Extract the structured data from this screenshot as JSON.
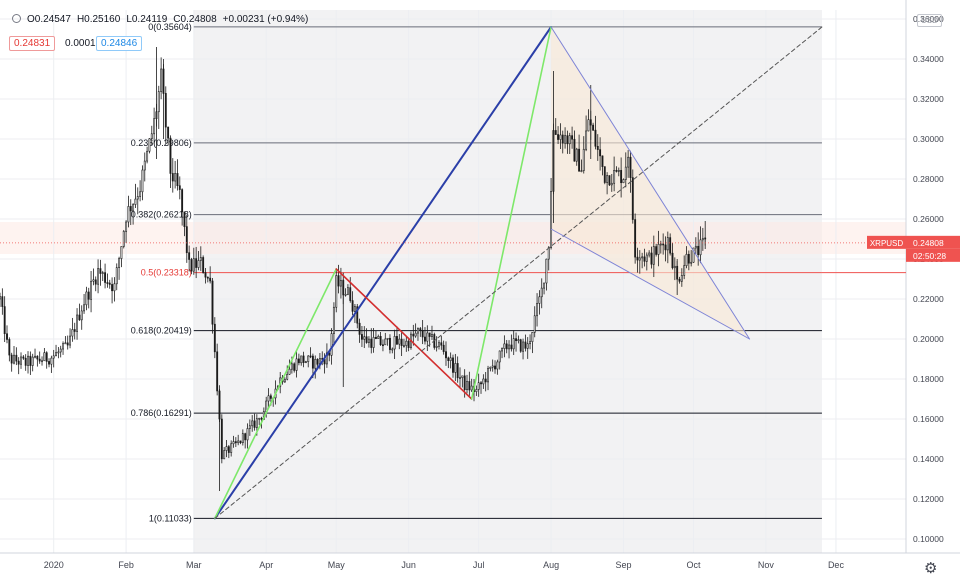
{
  "header": {
    "open": "O0.24547",
    "high": "H0.25160",
    "low": "L0.24119",
    "close": "C0.24808",
    "change": "+0.00231 (+0.94%)",
    "bid": "0.24831",
    "spread": "0.00015",
    "ask": "0.24846",
    "currency": "USD"
  },
  "chart_data": {
    "type": "candlestick",
    "symbol": "XRPUSD",
    "last_price": "0.24808",
    "countdown": "02:50:28",
    "ylim": [
      0.093,
      0.3645
    ],
    "x_range": [
      "2019-12-09",
      "2020-12-31"
    ],
    "y_ticks": [
      "0.10000",
      "0.12000",
      "0.14000",
      "0.16000",
      "0.18000",
      "0.20000",
      "0.22000",
      "0.24000",
      "0.26000",
      "0.28000",
      "0.30000",
      "0.32000",
      "0.34000",
      "0.36000"
    ],
    "x_ticks": [
      {
        "label": "2020",
        "date": "2020-01-01"
      },
      {
        "label": "Feb",
        "date": "2020-02-01"
      },
      {
        "label": "Mar",
        "date": "2020-03-01"
      },
      {
        "label": "Apr",
        "date": "2020-04-01"
      },
      {
        "label": "May",
        "date": "2020-05-01"
      },
      {
        "label": "Jun",
        "date": "2020-06-01"
      },
      {
        "label": "Jul",
        "date": "2020-07-01"
      },
      {
        "label": "Aug",
        "date": "2020-08-01"
      },
      {
        "label": "Sep",
        "date": "2020-09-01"
      },
      {
        "label": "Oct",
        "date": "2020-10-01"
      },
      {
        "label": "Nov",
        "date": "2020-11-01"
      },
      {
        "label": "Dec",
        "date": "2020-12-01"
      }
    ],
    "fib_levels": [
      {
        "label": "0(0.35604)",
        "price": 0.35604,
        "color": "#6a6d78"
      },
      {
        "label": "0.236(0.29806)",
        "price": 0.29806,
        "color": "#6a6d78"
      },
      {
        "label": "0.382(0.26218)",
        "price": 0.26218,
        "color": "#6a6d78"
      },
      {
        "label": "0.5(0.23318)",
        "price": 0.23318,
        "color": "#ef5350"
      },
      {
        "label": "0.618(0.20419)",
        "price": 0.20419,
        "color": "#131722"
      },
      {
        "label": "0.786(0.16291)",
        "price": 0.16291,
        "color": "#131722"
      },
      {
        "label": "1(0.11033)",
        "price": 0.11033,
        "color": "#131722"
      }
    ],
    "fib_start": "2020-03-01",
    "fib_end": "2020-11-25",
    "lines": [
      {
        "name": "blue-up",
        "color": "#2b3fa8",
        "width": 2,
        "points": [
          [
            "2020-03-10",
            0.1103
          ],
          [
            "2020-08-01",
            0.356
          ]
        ]
      },
      {
        "name": "green-1",
        "color": "#7ee86a",
        "width": 1.6,
        "points": [
          [
            "2020-03-10",
            0.1103
          ],
          [
            "2020-05-01",
            0.235
          ]
        ]
      },
      {
        "name": "red-1",
        "color": "#d32f2f",
        "width": 1.6,
        "points": [
          [
            "2020-05-01",
            0.235
          ],
          [
            "2020-06-28",
            0.17
          ]
        ]
      },
      {
        "name": "green-2",
        "color": "#7ee86a",
        "width": 1.6,
        "points": [
          [
            "2020-06-28",
            0.17
          ],
          [
            "2020-08-01",
            0.356
          ]
        ]
      },
      {
        "name": "dashed-trend",
        "color": "#555555",
        "width": 1,
        "dash": "4,3",
        "points": [
          [
            "2020-03-10",
            0.1103
          ],
          [
            "2020-11-25",
            0.356
          ]
        ]
      },
      {
        "name": "wedge-upper",
        "color": "#7e84d6",
        "width": 1,
        "points": [
          [
            "2020-08-01",
            0.356
          ],
          [
            "2020-10-25",
            0.2
          ]
        ]
      },
      {
        "name": "wedge-lower",
        "color": "#7e84d6",
        "width": 1,
        "points": [
          [
            "2020-08-01",
            0.255
          ],
          [
            "2020-10-25",
            0.2
          ]
        ]
      }
    ],
    "wedge_fill": [
      [
        "2020-08-01",
        0.356
      ],
      [
        "2020-10-25",
        0.2
      ],
      [
        "2020-08-01",
        0.255
      ]
    ],
    "control_points": [
      [
        "2019-12-09",
        0.22
      ],
      [
        "2019-12-13",
        0.19
      ],
      [
        "2019-12-20",
        0.188
      ],
      [
        "2019-12-31",
        0.191
      ],
      [
        "2020-01-07",
        0.196
      ],
      [
        "2020-01-13",
        0.216
      ],
      [
        "2020-01-20",
        0.234
      ],
      [
        "2020-01-27",
        0.226
      ],
      [
        "2020-02-01",
        0.262
      ],
      [
        "2020-02-07",
        0.276
      ],
      [
        "2020-02-13",
        0.308
      ],
      [
        "2020-02-16",
        0.33
      ],
      [
        "2020-02-20",
        0.284
      ],
      [
        "2020-02-24",
        0.272
      ],
      [
        "2020-02-28",
        0.236
      ],
      [
        "2020-03-04",
        0.238
      ],
      [
        "2020-03-08",
        0.228
      ],
      [
        "2020-03-13",
        0.142
      ],
      [
        "2020-03-20",
        0.148
      ],
      [
        "2020-03-30",
        0.162
      ],
      [
        "2020-04-07",
        0.18
      ],
      [
        "2020-04-15",
        0.19
      ],
      [
        "2020-04-22",
        0.188
      ],
      [
        "2020-04-28",
        0.192
      ],
      [
        "2020-05-01",
        0.228
      ],
      [
        "2020-05-07",
        0.222
      ],
      [
        "2020-05-12",
        0.2
      ],
      [
        "2020-05-20",
        0.198
      ],
      [
        "2020-05-31",
        0.198
      ],
      [
        "2020-06-05",
        0.203
      ],
      [
        "2020-06-15",
        0.196
      ],
      [
        "2020-06-25",
        0.177
      ],
      [
        "2020-06-30",
        0.174
      ],
      [
        "2020-07-07",
        0.186
      ],
      [
        "2020-07-14",
        0.198
      ],
      [
        "2020-07-22",
        0.196
      ],
      [
        "2020-07-28",
        0.224
      ],
      [
        "2020-07-31",
        0.248
      ],
      [
        "2020-08-02",
        0.304
      ],
      [
        "2020-08-08",
        0.3
      ],
      [
        "2020-08-14",
        0.286
      ],
      [
        "2020-08-17",
        0.31
      ],
      [
        "2020-08-24",
        0.282
      ],
      [
        "2020-09-01",
        0.282
      ],
      [
        "2020-09-03",
        0.294
      ],
      [
        "2020-09-06",
        0.244
      ],
      [
        "2020-09-12",
        0.24
      ],
      [
        "2020-09-20",
        0.25
      ],
      [
        "2020-09-24",
        0.229
      ],
      [
        "2020-09-28",
        0.241
      ],
      [
        "2020-10-02",
        0.243
      ],
      [
        "2020-10-06",
        0.248
      ]
    ]
  }
}
